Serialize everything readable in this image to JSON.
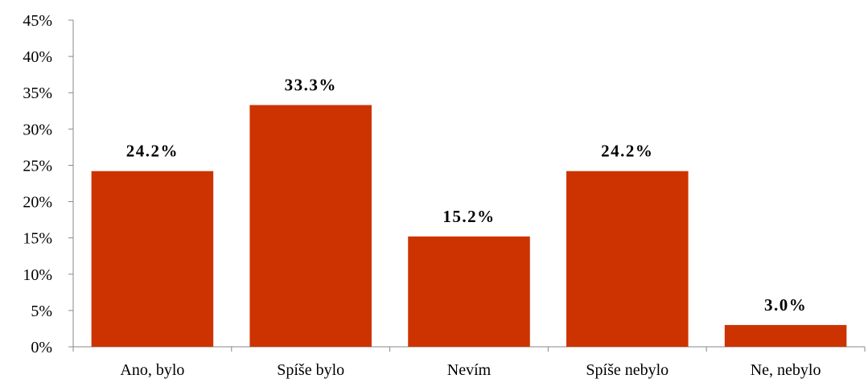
{
  "chart_data": {
    "type": "bar",
    "title": "",
    "xlabel": "",
    "ylabel": "",
    "categories": [
      "Ano, bylo",
      "Spíše bylo",
      "Nevím",
      "Spíše nebylo",
      "Ne, nebylo"
    ],
    "values": [
      24.2,
      33.3,
      15.2,
      24.2,
      3.0
    ],
    "data_labels": [
      "24.2%",
      "33.3%",
      "15.2%",
      "24.2%",
      "3.0%"
    ],
    "ylim": [
      0,
      45
    ],
    "yticks": [
      0,
      5,
      10,
      15,
      20,
      25,
      30,
      35,
      40,
      45
    ],
    "ytick_labels": [
      "0%",
      "5%",
      "10%",
      "15%",
      "20%",
      "25%",
      "30%",
      "35%",
      "40%",
      "45%"
    ],
    "grid": false,
    "legend": "none",
    "bar_color": "#CC3300"
  }
}
